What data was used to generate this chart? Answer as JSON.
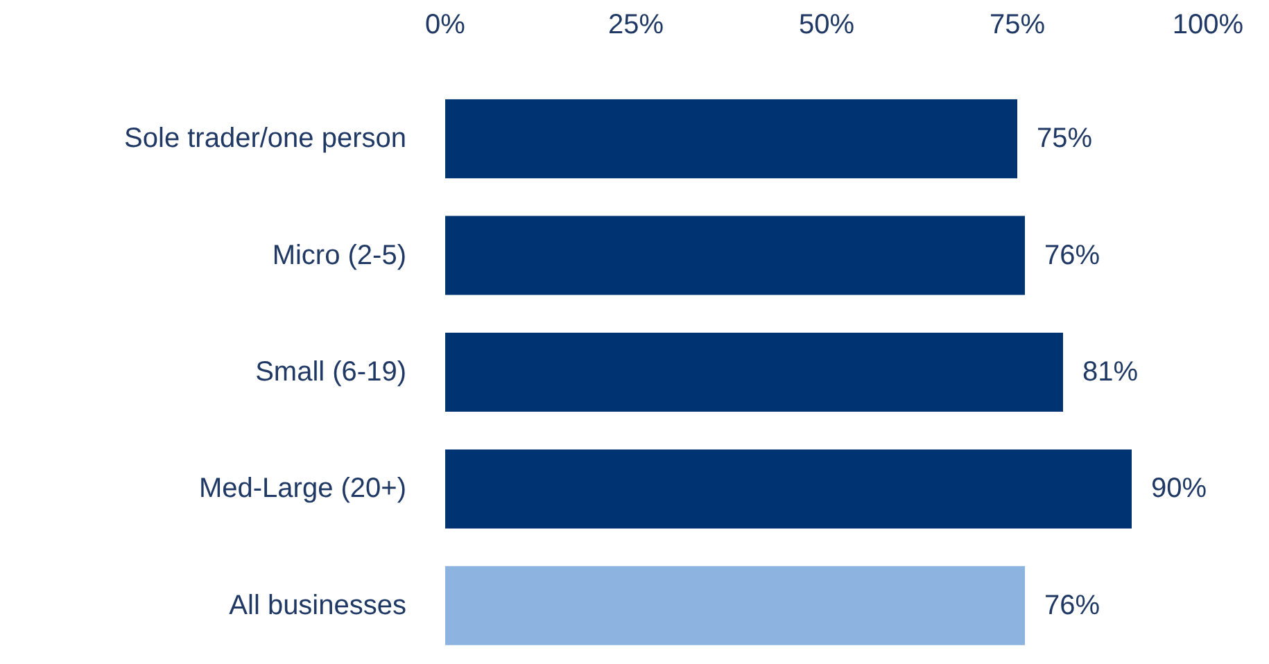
{
  "chart_data": {
    "type": "bar",
    "orientation": "horizontal",
    "categories": [
      "Sole trader/one person",
      "Micro (2-5)",
      "Small (6-19)",
      "Med-Large (20+)",
      "All businesses"
    ],
    "values": [
      75,
      76,
      81,
      90,
      76
    ],
    "colors": [
      "#003371",
      "#003371",
      "#003371",
      "#003371",
      "#8db4e0"
    ],
    "value_labels": [
      "75%",
      "76%",
      "81%",
      "90%",
      "76%"
    ],
    "xlim": [
      0,
      100
    ],
    "xticks": [
      {
        "value": 0,
        "label": "0%"
      },
      {
        "value": 25,
        "label": "25%"
      },
      {
        "value": 50,
        "label": "50%"
      },
      {
        "value": 75,
        "label": "75%"
      },
      {
        "value": 100,
        "label": "100%"
      }
    ]
  }
}
